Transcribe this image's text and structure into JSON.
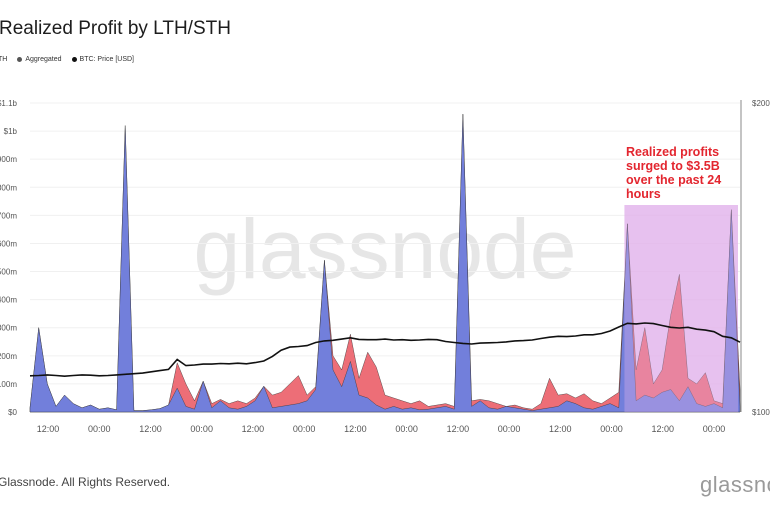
{
  "title": "Realized Profit by LTH/STH",
  "legend": [
    {
      "label": "TH",
      "color": "#6b80e0"
    },
    {
      "label": "Aggregated",
      "color": "#555555"
    },
    {
      "label": "BTC: Price [USD]",
      "color": "#111111"
    }
  ],
  "annotation": "Realized profits surged to $3.5B over the past 24 hours",
  "watermark": "glassnode",
  "footer": "Glassnode. All Rights Reserved.",
  "logo": "glassnode",
  "colors": {
    "lth": "#6b80e0",
    "sth": "#ec6670",
    "price": "#111111",
    "highlight": "#e3b5ec",
    "annotation": "#e3262f"
  },
  "chart_data": {
    "type": "area",
    "title": "Realized Profit by LTH/STH",
    "sampling": "2h",
    "x_ticks": [
      "12:00",
      "00:00",
      "12:00",
      "00:00",
      "12:00",
      "00:00",
      "12:00",
      "00:00",
      "12:00",
      "00:00",
      "12:00",
      "00:00",
      "12:00",
      "00:00"
    ],
    "y_left": {
      "ticks": [
        "$0",
        "$100m",
        "$200m",
        "$300m",
        "$400m",
        "$500m",
        "$600m",
        "$700m",
        "$800m",
        "$900m",
        "$1b",
        "$1.1b"
      ],
      "range": [
        0,
        1100
      ],
      "unit": "USD millions"
    },
    "y_right": {
      "ticks": [
        "$100",
        "$200"
      ],
      "range": [
        100,
        200
      ]
    },
    "grid": true,
    "series": [
      {
        "name": "TH",
        "kind": "area",
        "values": [
          15,
          300,
          100,
          20,
          60,
          30,
          15,
          25,
          10,
          15,
          8,
          1020,
          5,
          5,
          8,
          12,
          25,
          85,
          20,
          10,
          110,
          15,
          40,
          15,
          10,
          20,
          40,
          92,
          15,
          20,
          25,
          30,
          40,
          80,
          540,
          150,
          90,
          180,
          60,
          50,
          25,
          10,
          20,
          10,
          15,
          8,
          10,
          15,
          20,
          10,
          1060,
          20,
          40,
          15,
          10,
          20,
          15,
          10,
          5,
          10,
          15,
          20,
          40,
          30,
          15,
          10,
          20,
          30,
          15,
          670,
          40,
          60,
          50,
          70,
          80,
          40,
          90,
          30,
          20,
          30,
          15,
          720,
          20
        ]
      },
      {
        "name": "Aggregated",
        "kind": "area",
        "values": [
          15,
          300,
          100,
          20,
          60,
          30,
          15,
          25,
          10,
          15,
          8,
          1020,
          5,
          5,
          8,
          12,
          25,
          175,
          100,
          40,
          110,
          30,
          45,
          30,
          40,
          30,
          50,
          92,
          60,
          70,
          100,
          130,
          60,
          90,
          540,
          200,
          150,
          277,
          120,
          213,
          160,
          60,
          50,
          40,
          30,
          40,
          20,
          25,
          30,
          20,
          1060,
          40,
          45,
          40,
          30,
          20,
          25,
          15,
          10,
          30,
          120,
          60,
          65,
          50,
          65,
          40,
          30,
          50,
          70,
          670,
          150,
          300,
          100,
          150,
          345,
          490,
          120,
          100,
          140,
          40,
          30,
          720,
          80
        ]
      },
      {
        "name": "BTC: Price [USD]",
        "kind": "line",
        "axis": "right",
        "values": [
          111.7,
          111.8,
          112,
          111.8,
          111.6,
          111.8,
          112,
          111.9,
          111.7,
          111.8,
          112,
          112.2,
          112.4,
          112.6,
          113,
          113.4,
          113.8,
          117,
          115,
          115.2,
          115.5,
          115.5,
          115.7,
          115.6,
          115.8,
          115.6,
          116,
          116.5,
          118,
          120,
          121,
          121.2,
          121.5,
          122.5,
          123,
          123.2,
          123.6,
          124,
          123.5,
          123.4,
          123.4,
          123.6,
          123.3,
          123.4,
          123.2,
          123.3,
          123.5,
          123.4,
          122.8,
          122.5,
          122.2,
          122,
          122.3,
          122.4,
          122.5,
          122.7,
          123,
          123.1,
          123.3,
          123.8,
          124.2,
          124.5,
          124.4,
          124.6,
          125,
          125,
          125.4,
          126.2,
          127.5,
          128.7,
          128.5,
          128.8,
          128.6,
          128,
          127.4,
          127.2,
          127.4,
          126.8,
          126.5,
          126,
          124.5,
          124,
          122.6
        ]
      }
    ],
    "highlight": {
      "from_index": 69,
      "label": "Realized profits surged to $3.5B over the past 24 hours"
    }
  }
}
